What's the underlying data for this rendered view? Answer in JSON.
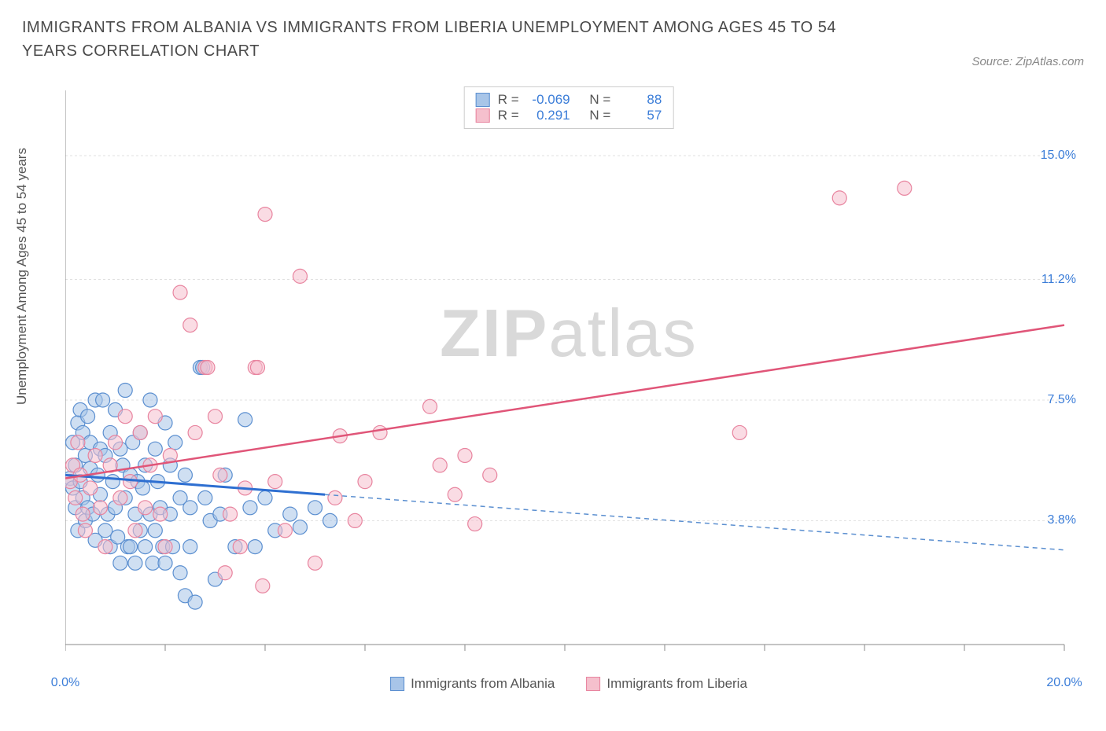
{
  "title": "IMMIGRANTS FROM ALBANIA VS IMMIGRANTS FROM LIBERIA UNEMPLOYMENT AMONG AGES 45 TO 54 YEARS CORRELATION CHART",
  "source": "Source: ZipAtlas.com",
  "y_axis_label": "Unemployment Among Ages 45 to 54 years",
  "watermark_a": "ZIP",
  "watermark_b": "atlas",
  "chart": {
    "type": "scatter",
    "xlim": [
      0,
      20
    ],
    "ylim": [
      0,
      17
    ],
    "background_color": "#ffffff",
    "grid_color": "#e0e0e0",
    "axis_color": "#888888",
    "x_ticks": [
      0,
      2,
      4,
      6,
      8,
      10,
      12,
      14,
      16,
      18,
      20
    ],
    "x_tick_labels": {
      "0": "0.0%",
      "20": "20.0%"
    },
    "y_gridlines": [
      3.8,
      7.5,
      11.2,
      15.0
    ],
    "y_tick_labels": [
      "3.8%",
      "7.5%",
      "11.2%",
      "15.0%"
    ],
    "series": [
      {
        "name": "Immigrants from Albania",
        "color_fill": "#a8c5e8",
        "color_stroke": "#5b8fd0",
        "marker": "circle",
        "marker_size": 9,
        "fill_opacity": 0.55,
        "r": -0.069,
        "n": 88,
        "regression": {
          "x1": 0,
          "y1": 5.2,
          "x2": 5.2,
          "y2": 4.6,
          "x1_dash": 5.2,
          "y1_dash": 4.6,
          "x2_dash": 20,
          "y2_dash": 2.9,
          "solid_color": "#2e6fd1",
          "solid_width": 3,
          "dash_color": "#5b8fd0",
          "dash_width": 1.5
        },
        "points": [
          [
            0.1,
            5.1
          ],
          [
            0.15,
            4.8
          ],
          [
            0.15,
            6.2
          ],
          [
            0.2,
            5.5
          ],
          [
            0.2,
            4.2
          ],
          [
            0.25,
            6.8
          ],
          [
            0.25,
            3.5
          ],
          [
            0.3,
            7.2
          ],
          [
            0.3,
            5.0
          ],
          [
            0.35,
            4.5
          ],
          [
            0.35,
            6.5
          ],
          [
            0.4,
            5.8
          ],
          [
            0.4,
            3.8
          ],
          [
            0.45,
            7.0
          ],
          [
            0.45,
            4.2
          ],
          [
            0.5,
            6.2
          ],
          [
            0.5,
            5.4
          ],
          [
            0.55,
            4.0
          ],
          [
            0.6,
            7.5
          ],
          [
            0.6,
            3.2
          ],
          [
            0.65,
            5.2
          ],
          [
            0.7,
            6.0
          ],
          [
            0.7,
            4.6
          ],
          [
            0.75,
            7.5
          ],
          [
            0.8,
            3.5
          ],
          [
            0.8,
            5.8
          ],
          [
            0.85,
            4.0
          ],
          [
            0.9,
            6.5
          ],
          [
            0.9,
            3.0
          ],
          [
            0.95,
            5.0
          ],
          [
            1.0,
            7.2
          ],
          [
            1.0,
            4.2
          ],
          [
            1.05,
            3.3
          ],
          [
            1.1,
            6.0
          ],
          [
            1.1,
            2.5
          ],
          [
            1.15,
            5.5
          ],
          [
            1.2,
            4.5
          ],
          [
            1.2,
            7.8
          ],
          [
            1.25,
            3.0
          ],
          [
            1.3,
            5.2
          ],
          [
            1.3,
            3.0
          ],
          [
            1.35,
            6.2
          ],
          [
            1.4,
            4.0
          ],
          [
            1.4,
            2.5
          ],
          [
            1.45,
            5.0
          ],
          [
            1.5,
            6.5
          ],
          [
            1.5,
            3.5
          ],
          [
            1.55,
            4.8
          ],
          [
            1.6,
            3.0
          ],
          [
            1.6,
            5.5
          ],
          [
            1.7,
            7.5
          ],
          [
            1.7,
            4.0
          ],
          [
            1.75,
            2.5
          ],
          [
            1.8,
            6.0
          ],
          [
            1.8,
            3.5
          ],
          [
            1.85,
            5.0
          ],
          [
            1.9,
            4.2
          ],
          [
            1.95,
            3.0
          ],
          [
            2.0,
            6.8
          ],
          [
            2.0,
            2.5
          ],
          [
            2.1,
            5.5
          ],
          [
            2.1,
            4.0
          ],
          [
            2.15,
            3.0
          ],
          [
            2.2,
            6.2
          ],
          [
            2.3,
            4.5
          ],
          [
            2.3,
            2.2
          ],
          [
            2.4,
            1.5
          ],
          [
            2.4,
            5.2
          ],
          [
            2.5,
            3.0
          ],
          [
            2.5,
            4.2
          ],
          [
            2.6,
            1.3
          ],
          [
            2.7,
            8.5
          ],
          [
            2.75,
            8.5
          ],
          [
            2.8,
            4.5
          ],
          [
            2.9,
            3.8
          ],
          [
            3.0,
            2.0
          ],
          [
            3.1,
            4.0
          ],
          [
            3.2,
            5.2
          ],
          [
            3.4,
            3.0
          ],
          [
            3.6,
            6.9
          ],
          [
            3.7,
            4.2
          ],
          [
            3.8,
            3.0
          ],
          [
            4.0,
            4.5
          ],
          [
            4.2,
            3.5
          ],
          [
            4.5,
            4.0
          ],
          [
            4.7,
            3.6
          ],
          [
            5.0,
            4.2
          ],
          [
            5.3,
            3.8
          ]
        ]
      },
      {
        "name": "Immigrants from Liberia",
        "color_fill": "#f5c0cd",
        "color_stroke": "#e8849f",
        "marker": "circle",
        "marker_size": 9,
        "fill_opacity": 0.55,
        "r": 0.291,
        "n": 57,
        "regression": {
          "x1": 0,
          "y1": 5.1,
          "x2": 20,
          "y2": 9.8,
          "solid_color": "#e05578",
          "solid_width": 2.5
        },
        "points": [
          [
            0.1,
            5.0
          ],
          [
            0.15,
            5.5
          ],
          [
            0.2,
            4.5
          ],
          [
            0.25,
            6.2
          ],
          [
            0.3,
            5.2
          ],
          [
            0.35,
            4.0
          ],
          [
            0.4,
            3.5
          ],
          [
            0.5,
            4.8
          ],
          [
            0.6,
            5.8
          ],
          [
            0.7,
            4.2
          ],
          [
            0.8,
            3.0
          ],
          [
            0.9,
            5.5
          ],
          [
            1.0,
            6.2
          ],
          [
            1.1,
            4.5
          ],
          [
            1.2,
            7.0
          ],
          [
            1.3,
            5.0
          ],
          [
            1.4,
            3.5
          ],
          [
            1.5,
            6.5
          ],
          [
            1.6,
            4.2
          ],
          [
            1.7,
            5.5
          ],
          [
            1.8,
            7.0
          ],
          [
            1.9,
            4.0
          ],
          [
            2.0,
            3.0
          ],
          [
            2.1,
            5.8
          ],
          [
            2.3,
            10.8
          ],
          [
            2.5,
            9.8
          ],
          [
            2.6,
            6.5
          ],
          [
            2.8,
            8.5
          ],
          [
            2.85,
            8.5
          ],
          [
            3.0,
            7.0
          ],
          [
            3.1,
            5.2
          ],
          [
            3.2,
            2.2
          ],
          [
            3.3,
            4.0
          ],
          [
            3.5,
            3.0
          ],
          [
            3.6,
            4.8
          ],
          [
            3.8,
            8.5
          ],
          [
            3.85,
            8.5
          ],
          [
            3.95,
            1.8
          ],
          [
            4.0,
            13.2
          ],
          [
            4.2,
            5.0
          ],
          [
            4.4,
            3.5
          ],
          [
            4.7,
            11.3
          ],
          [
            5.0,
            2.5
          ],
          [
            5.4,
            4.5
          ],
          [
            5.5,
            6.4
          ],
          [
            5.8,
            3.8
          ],
          [
            6.0,
            5.0
          ],
          [
            6.3,
            6.5
          ],
          [
            7.3,
            7.3
          ],
          [
            7.5,
            5.5
          ],
          [
            7.8,
            4.6
          ],
          [
            8.0,
            5.8
          ],
          [
            8.2,
            3.7
          ],
          [
            8.5,
            5.2
          ],
          [
            13.5,
            6.5
          ],
          [
            15.5,
            13.7
          ],
          [
            16.8,
            14.0
          ]
        ]
      }
    ]
  },
  "legend_stats": {
    "r_label": "R =",
    "n_label": "N ="
  }
}
